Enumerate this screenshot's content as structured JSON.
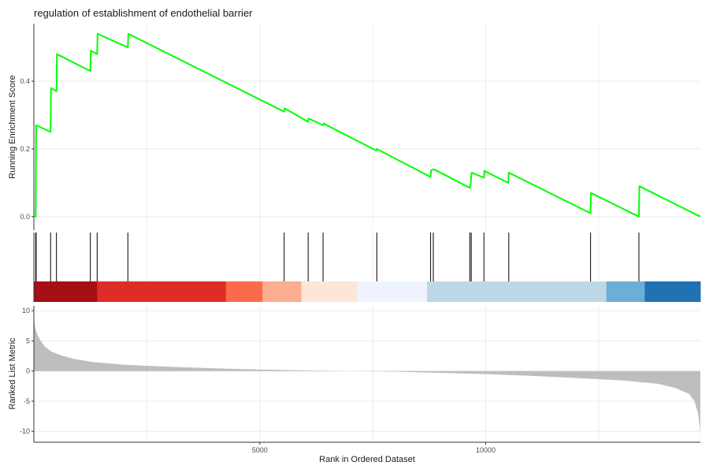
{
  "chart_data": {
    "type": "line",
    "title": "regulation of establishment of endothelial barrier",
    "xlabel": "Rank in Ordered Dataset",
    "x_ticks": [
      5000,
      10000
    ],
    "x_range": [
      0,
      14750
    ],
    "es_panel": {
      "ylabel": "Running Enrichment Score",
      "y_ticks": [
        0.0,
        0.2,
        0.4
      ],
      "y_tick_labels": [
        "0.0",
        "0.2",
        "0.4"
      ],
      "ylim": [
        -0.04,
        0.57
      ],
      "line_color": "#00FF00",
      "points": [
        [
          0,
          0
        ],
        [
          40,
          0
        ],
        [
          50,
          0.27
        ],
        [
          370,
          0.25
        ],
        [
          380,
          0.38
        ],
        [
          500,
          0.37
        ],
        [
          510,
          0.48
        ],
        [
          1250,
          0.43
        ],
        [
          1260,
          0.49
        ],
        [
          1400,
          0.48
        ],
        [
          1410,
          0.54
        ],
        [
          2080,
          0.5
        ],
        [
          2090,
          0.54
        ],
        [
          5540,
          0.31
        ],
        [
          5550,
          0.32
        ],
        [
          6070,
          0.28
        ],
        [
          6080,
          0.29
        ],
        [
          6400,
          0.27
        ],
        [
          6410,
          0.275
        ],
        [
          7580,
          0.195
        ],
        [
          7590,
          0.2
        ],
        [
          8780,
          0.117
        ],
        [
          8790,
          0.137
        ],
        [
          8850,
          0.14
        ],
        [
          9650,
          0.085
        ],
        [
          9670,
          0.1
        ],
        [
          9680,
          0.12
        ],
        [
          9690,
          0.13
        ],
        [
          9960,
          0.115
        ],
        [
          9970,
          0.135
        ],
        [
          10500,
          0.1
        ],
        [
          10510,
          0.13
        ],
        [
          12320,
          0.01
        ],
        [
          12330,
          0.07
        ],
        [
          13390,
          0.0
        ],
        [
          13400,
          0.09
        ],
        [
          14750,
          0.0
        ]
      ]
    },
    "hit_positions": [
      40,
      50,
      370,
      500,
      1250,
      1400,
      2080,
      5540,
      6070,
      6400,
      7590,
      8780,
      8840,
      9650,
      9680,
      9960,
      10510,
      12320,
      13390
    ],
    "rank_color_bands": [
      {
        "start": 0,
        "end": 1400,
        "color": "#A50F15"
      },
      {
        "start": 1400,
        "end": 4250,
        "color": "#DE2D26"
      },
      {
        "start": 4250,
        "end": 5060,
        "color": "#FB6A4A"
      },
      {
        "start": 5060,
        "end": 5920,
        "color": "#FCAE91"
      },
      {
        "start": 5920,
        "end": 7150,
        "color": "#FEE5D9"
      },
      {
        "start": 7150,
        "end": 8700,
        "color": "#EFF3FF"
      },
      {
        "start": 8700,
        "end": 12670,
        "color": "#BDD7E7"
      },
      {
        "start": 12670,
        "end": 13520,
        "color": "#6BAED6"
      },
      {
        "start": 13520,
        "end": 14750,
        "color": "#2171B5"
      }
    ],
    "ranked_metric_panel": {
      "ylabel": "Ranked List Metric",
      "y_ticks": [
        10,
        5,
        0,
        -5,
        -10
      ],
      "y_tick_labels": [
        "10",
        "5",
        "0",
        "-5",
        "-10"
      ],
      "ylim": [
        -11.8,
        10.8
      ],
      "fill_color": "#BEBEBE",
      "points": [
        [
          0,
          10.5
        ],
        [
          10,
          8.2
        ],
        [
          30,
          7.2
        ],
        [
          80,
          6.0
        ],
        [
          150,
          5.0
        ],
        [
          250,
          4.0
        ],
        [
          400,
          3.2
        ],
        [
          600,
          2.6
        ],
        [
          900,
          2.0
        ],
        [
          1300,
          1.5
        ],
        [
          2000,
          1.05
        ],
        [
          3000,
          0.7
        ],
        [
          4000,
          0.45
        ],
        [
          5000,
          0.25
        ],
        [
          6000,
          0.1
        ],
        [
          7000,
          0.0
        ],
        [
          8000,
          -0.1
        ],
        [
          9000,
          -0.3
        ],
        [
          10000,
          -0.5
        ],
        [
          11000,
          -0.8
        ],
        [
          12000,
          -1.15
        ],
        [
          13000,
          -1.55
        ],
        [
          13800,
          -2.1
        ],
        [
          14200,
          -2.8
        ],
        [
          14500,
          -3.8
        ],
        [
          14620,
          -5.0
        ],
        [
          14700,
          -7.0
        ],
        [
          14740,
          -9.5
        ],
        [
          14750,
          -10.8
        ]
      ]
    }
  }
}
